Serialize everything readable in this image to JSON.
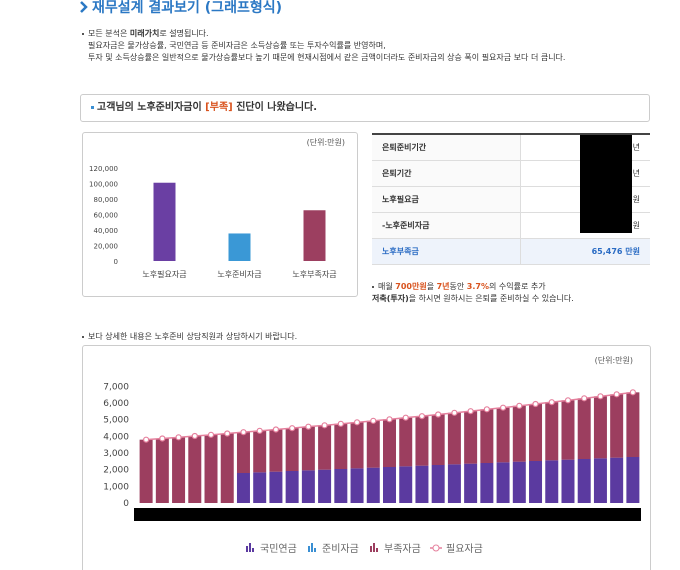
{
  "header": {
    "title": "재무설계 결과보기 (그래프형식)"
  },
  "notes": {
    "line1_prefix": "모든 분석은 ",
    "line1_bold": "미래가치",
    "line1_suffix": "로 설명됩니다.",
    "line2": "필요자금은 물가상승률, 국민연금 등 준비자금은 소득상승률 또는 투자수익률를 반영하며,",
    "line3": "투자 및 소득상승률은 일반적으로 물가상승률보다 높기 때문에 현재시점에서 같은 금액이더라도 준비자금의 상승 폭이 필요자금 보다 더 큽니다."
  },
  "banner": {
    "prefix": "고객님의 노후준비자금이 ",
    "status": "[부족]",
    "suffix": " 진단이 나왔습니다."
  },
  "table": {
    "rows": [
      [
        "은퇴준비기간",
        "년"
      ],
      [
        "은퇴기간",
        "년"
      ],
      [
        "노후필요금",
        "원"
      ],
      [
        "-노후준비자금",
        "원"
      ],
      [
        "노후부족금",
        "65,476 만원"
      ]
    ]
  },
  "advice": {
    "parts": [
      "매월 ",
      "700만원",
      "을 ",
      "7년",
      "동안 ",
      "3.7%",
      "의 수익률로 추가",
      "저축(투자)",
      "을 하시면 원하시는 은퇴를 준비하실 수 있습니다."
    ]
  },
  "detail_note": "보다 상세한 내용은 노후준비 상담직원과 상담하시기 바랍니다.",
  "chart_data": [
    {
      "type": "bar",
      "unit": "(단위:만원)",
      "categories": [
        "노후필요자금",
        "노후준비자금",
        "노후부족자금"
      ],
      "values": [
        101000,
        35524,
        65476
      ],
      "colors": [
        "#6a3fa3",
        "#3a98d6",
        "#9c3f60"
      ],
      "ylim": [
        0,
        120000
      ],
      "yticks": [
        0,
        {
          "value": 20000,
          "label": "20,000"
        },
        {
          "value": 40000,
          "label": "40,000"
        },
        {
          "value": 60000,
          "label": "60,000"
        },
        {
          "value": 80000,
          "label": "80,000"
        },
        {
          "value": 100000,
          "label": "100,000"
        },
        {
          "value": 120000,
          "label": "120,000"
        }
      ]
    },
    {
      "type": "combo",
      "unit": "(단위:만원)",
      "categories": [
        null,
        null,
        null,
        null,
        null,
        null,
        null,
        null,
        null,
        null,
        null,
        null,
        null,
        null,
        null,
        null,
        null,
        null,
        null,
        null,
        null,
        null,
        null,
        null,
        null,
        null,
        null,
        null,
        null,
        null,
        null
      ],
      "ylim": [
        0,
        7500
      ],
      "yticks": [
        0,
        {
          "value": 1000,
          "label": "1,000"
        },
        {
          "value": 2000,
          "label": "2,000"
        },
        {
          "value": 3000,
          "label": "3,000"
        },
        {
          "value": 4000,
          "label": "4,000"
        },
        {
          "value": 5000,
          "label": "5,000"
        },
        {
          "value": 6000,
          "label": "6,000"
        },
        {
          "value": 7000,
          "label": "7,000"
        }
      ],
      "series": [
        {
          "name": "국민연금",
          "color": "#5b3aa0",
          "kind": "bar",
          "values": [
            0,
            0,
            0,
            0,
            0,
            0,
            1800,
            1840,
            1880,
            1920,
            1960,
            2000,
            2040,
            2080,
            2120,
            2160,
            2200,
            2240,
            2280,
            2320,
            2360,
            2400,
            2440,
            2480,
            2520,
            2560,
            2600,
            2640,
            2680,
            2720,
            2760
          ]
        },
        {
          "name": "준비자금",
          "color": "#3a8fd3",
          "kind": "bar",
          "values": [
            0,
            0,
            0,
            0,
            0,
            0,
            0,
            0,
            0,
            0,
            0,
            0,
            0,
            0,
            0,
            0,
            0,
            0,
            0,
            0,
            0,
            0,
            0,
            0,
            0,
            0,
            0,
            0,
            0,
            0,
            0
          ]
        },
        {
          "name": "부족자금",
          "color": "#9c3e5f",
          "kind": "bar",
          "values": [
            3800,
            3870,
            3940,
            4020,
            4090,
            4170,
            2450,
            2490,
            2530,
            2570,
            2620,
            2660,
            2710,
            2760,
            2810,
            2860,
            2920,
            2970,
            3030,
            3090,
            3150,
            3220,
            3280,
            3350,
            3420,
            3490,
            3560,
            3640,
            3720,
            3800,
            3880
          ]
        },
        {
          "name": "필요자금",
          "color": "#e5809d",
          "kind": "line",
          "values": [
            3800,
            3870,
            3940,
            4020,
            4090,
            4170,
            4250,
            4330,
            4410,
            4490,
            4580,
            4660,
            4750,
            4840,
            4930,
            5020,
            5120,
            5210,
            5310,
            5410,
            5510,
            5620,
            5720,
            5830,
            5940,
            6050,
            6160,
            6280,
            6400,
            6520,
            6640
          ]
        }
      ]
    }
  ]
}
